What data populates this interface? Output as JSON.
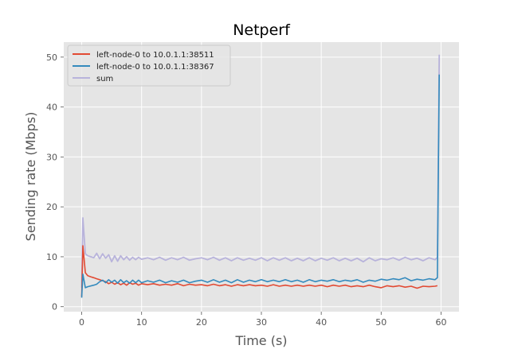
{
  "chart_data": {
    "type": "line",
    "title": "Netperf",
    "xlabel": "Time (s)",
    "ylabel": "Sending rate (Mbps)",
    "xlim": [
      -3,
      63
    ],
    "ylim": [
      -1,
      53
    ],
    "xticks": [
      0,
      10,
      20,
      30,
      40,
      50,
      60
    ],
    "yticks": [
      0,
      10,
      20,
      30,
      40,
      50
    ],
    "grid": true,
    "legend_position": "top-left",
    "series": [
      {
        "name": "left-node-0 to 10.0.1.1:38511",
        "color": "#E24A33",
        "points": [
          [
            0,
            2.0
          ],
          [
            0.2,
            12.2
          ],
          [
            0.6,
            6.8
          ],
          [
            1,
            6.2
          ],
          [
            1.5,
            6.0
          ],
          [
            2,
            5.8
          ],
          [
            2.5,
            5.6
          ],
          [
            3,
            5.4
          ],
          [
            3.5,
            5.2
          ],
          [
            4,
            5.0
          ],
          [
            4.5,
            4.6
          ],
          [
            5,
            4.9
          ],
          [
            5.5,
            4.5
          ],
          [
            6,
            4.8
          ],
          [
            6.5,
            4.4
          ],
          [
            7,
            4.7
          ],
          [
            7.5,
            4.3
          ],
          [
            8,
            4.8
          ],
          [
            8.5,
            4.5
          ],
          [
            9,
            4.7
          ],
          [
            9.5,
            4.3
          ],
          [
            10,
            4.6
          ],
          [
            11,
            4.4
          ],
          [
            12,
            4.6
          ],
          [
            13,
            4.3
          ],
          [
            14,
            4.5
          ],
          [
            15,
            4.3
          ],
          [
            16,
            4.6
          ],
          [
            17,
            4.2
          ],
          [
            18,
            4.5
          ],
          [
            19,
            4.3
          ],
          [
            20,
            4.4
          ],
          [
            21,
            4.2
          ],
          [
            22,
            4.5
          ],
          [
            23,
            4.2
          ],
          [
            24,
            4.4
          ],
          [
            25,
            4.1
          ],
          [
            26,
            4.4
          ],
          [
            27,
            4.2
          ],
          [
            28,
            4.4
          ],
          [
            29,
            4.2
          ],
          [
            30,
            4.3
          ],
          [
            31,
            4.1
          ],
          [
            32,
            4.4
          ],
          [
            33,
            4.1
          ],
          [
            34,
            4.3
          ],
          [
            35,
            4.1
          ],
          [
            36,
            4.3
          ],
          [
            37,
            4.1
          ],
          [
            38,
            4.3
          ],
          [
            39,
            4.1
          ],
          [
            40,
            4.3
          ],
          [
            41,
            4.0
          ],
          [
            42,
            4.3
          ],
          [
            43,
            4.1
          ],
          [
            44,
            4.3
          ],
          [
            45,
            4.0
          ],
          [
            46,
            4.2
          ],
          [
            47,
            4.0
          ],
          [
            48,
            4.3
          ],
          [
            49,
            4.0
          ],
          [
            50,
            3.8
          ],
          [
            51,
            4.2
          ],
          [
            52,
            4.0
          ],
          [
            53,
            4.2
          ],
          [
            54,
            3.9
          ],
          [
            55,
            4.1
          ],
          [
            56,
            3.7
          ],
          [
            57,
            4.1
          ],
          [
            58,
            4.0
          ],
          [
            59,
            4.1
          ],
          [
            59.4,
            4.2
          ]
        ]
      },
      {
        "name": "left-node-0 to 10.0.1.1:38367",
        "color": "#348ABD",
        "points": [
          [
            0,
            1.8
          ],
          [
            0.2,
            6.5
          ],
          [
            0.6,
            3.8
          ],
          [
            1,
            4.0
          ],
          [
            2,
            4.3
          ],
          [
            2.5,
            4.5
          ],
          [
            3,
            5.0
          ],
          [
            3.5,
            5.3
          ],
          [
            4,
            4.8
          ],
          [
            4.5,
            5.4
          ],
          [
            5,
            4.9
          ],
          [
            5.5,
            5.3
          ],
          [
            6,
            4.7
          ],
          [
            6.5,
            5.4
          ],
          [
            7,
            4.8
          ],
          [
            7.5,
            5.2
          ],
          [
            8,
            4.7
          ],
          [
            8.5,
            5.3
          ],
          [
            9,
            4.8
          ],
          [
            9.5,
            5.3
          ],
          [
            10,
            4.8
          ],
          [
            11,
            5.2
          ],
          [
            12,
            4.9
          ],
          [
            13,
            5.3
          ],
          [
            14,
            4.8
          ],
          [
            15,
            5.2
          ],
          [
            16,
            4.9
          ],
          [
            17,
            5.3
          ],
          [
            18,
            4.8
          ],
          [
            19,
            5.1
          ],
          [
            20,
            5.3
          ],
          [
            21,
            4.9
          ],
          [
            22,
            5.4
          ],
          [
            23,
            4.9
          ],
          [
            24,
            5.3
          ],
          [
            25,
            4.8
          ],
          [
            26,
            5.4
          ],
          [
            27,
            4.9
          ],
          [
            28,
            5.3
          ],
          [
            29,
            5.0
          ],
          [
            30,
            5.4
          ],
          [
            31,
            5.0
          ],
          [
            32,
            5.3
          ],
          [
            33,
            5.0
          ],
          [
            34,
            5.4
          ],
          [
            35,
            5.0
          ],
          [
            36,
            5.3
          ],
          [
            37,
            4.9
          ],
          [
            38,
            5.4
          ],
          [
            39,
            5.0
          ],
          [
            40,
            5.3
          ],
          [
            41,
            5.1
          ],
          [
            42,
            5.4
          ],
          [
            43,
            5.0
          ],
          [
            44,
            5.3
          ],
          [
            45,
            5.1
          ],
          [
            46,
            5.4
          ],
          [
            47,
            4.9
          ],
          [
            48,
            5.3
          ],
          [
            49,
            5.1
          ],
          [
            50,
            5.5
          ],
          [
            51,
            5.3
          ],
          [
            52,
            5.6
          ],
          [
            53,
            5.4
          ],
          [
            54,
            5.8
          ],
          [
            55,
            5.2
          ],
          [
            56,
            5.5
          ],
          [
            57,
            5.3
          ],
          [
            58,
            5.6
          ],
          [
            59,
            5.4
          ],
          [
            59.4,
            5.8
          ],
          [
            59.7,
            46.5
          ]
        ]
      },
      {
        "name": "sum",
        "color": "#B8B3DB",
        "points": [
          [
            0,
            3.8
          ],
          [
            0.2,
            17.8
          ],
          [
            0.6,
            10.6
          ],
          [
            1,
            10.2
          ],
          [
            1.5,
            10.0
          ],
          [
            2,
            9.8
          ],
          [
            2.5,
            10.7
          ],
          [
            3,
            9.6
          ],
          [
            3.5,
            10.6
          ],
          [
            4,
            9.7
          ],
          [
            4.5,
            10.4
          ],
          [
            5,
            9.0
          ],
          [
            5.5,
            10.2
          ],
          [
            6,
            9.1
          ],
          [
            6.5,
            10.2
          ],
          [
            7,
            9.4
          ],
          [
            7.5,
            10.0
          ],
          [
            8,
            9.3
          ],
          [
            8.5,
            9.9
          ],
          [
            9,
            9.4
          ],
          [
            9.5,
            9.9
          ],
          [
            10,
            9.5
          ],
          [
            11,
            9.8
          ],
          [
            12,
            9.4
          ],
          [
            13,
            9.9
          ],
          [
            14,
            9.3
          ],
          [
            15,
            9.8
          ],
          [
            16,
            9.4
          ],
          [
            17,
            9.9
          ],
          [
            18,
            9.3
          ],
          [
            19,
            9.6
          ],
          [
            20,
            9.8
          ],
          [
            21,
            9.4
          ],
          [
            22,
            9.9
          ],
          [
            23,
            9.3
          ],
          [
            24,
            9.8
          ],
          [
            25,
            9.2
          ],
          [
            26,
            9.8
          ],
          [
            27,
            9.3
          ],
          [
            28,
            9.7
          ],
          [
            29,
            9.3
          ],
          [
            30,
            9.8
          ],
          [
            31,
            9.2
          ],
          [
            32,
            9.8
          ],
          [
            33,
            9.3
          ],
          [
            34,
            9.8
          ],
          [
            35,
            9.2
          ],
          [
            36,
            9.7
          ],
          [
            37,
            9.2
          ],
          [
            38,
            9.8
          ],
          [
            39,
            9.2
          ],
          [
            40,
            9.7
          ],
          [
            41,
            9.3
          ],
          [
            42,
            9.8
          ],
          [
            43,
            9.2
          ],
          [
            44,
            9.7
          ],
          [
            45,
            9.2
          ],
          [
            46,
            9.7
          ],
          [
            47,
            9.0
          ],
          [
            48,
            9.8
          ],
          [
            49,
            9.2
          ],
          [
            50,
            9.6
          ],
          [
            51,
            9.4
          ],
          [
            52,
            9.8
          ],
          [
            53,
            9.3
          ],
          [
            54,
            9.9
          ],
          [
            55,
            9.4
          ],
          [
            56,
            9.7
          ],
          [
            57,
            9.2
          ],
          [
            58,
            9.8
          ],
          [
            59,
            9.4
          ],
          [
            59.4,
            9.9
          ],
          [
            59.7,
            50.5
          ]
        ]
      }
    ]
  },
  "style": {
    "panel_bg": "#E5E5E5",
    "grid_color": "#FFFFFF",
    "tick_label_color": "#555555",
    "axis_label_color": "#555555",
    "title_color": "#000000"
  }
}
